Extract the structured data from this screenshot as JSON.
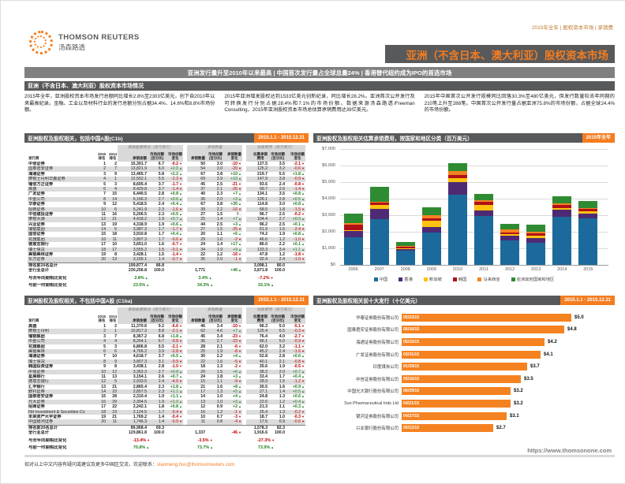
{
  "meta": "2015年全年 | 股权资本市场 | 承销费",
  "brand": {
    "name": "THOMSON REUTERS",
    "cn": "汤森路透"
  },
  "title": "亚洲（不含日本、澳大利亚）股权资本市场",
  "subtitle": "亚洲发行量升至2010年以来最高  |  中国首次发行量占全球总量24%  |  香港替代纽约成为IPO的首选市场",
  "overview": {
    "heading": "亚洲（不含日本、澳大利亚）股权资本市场情况",
    "paragraphs": [
      "2015年全年，亚洲股权资本市场发行总额同比增长2.8%至2303亿美元，创下自2010年以来最高纪录。金融、工业以及材料行业的发行总额分别占据34.4%、14.6%和8.8%市场份额。",
      "2015年亚洲增发股权达到1533亿美元创新纪录，同比增长28.2%。亚洲首次公开发行及可转换发行分别占据28.4%和7.1%的市场份额。数据来源汤森路透/Freeman Consulting，2015年亚洲股权资本市场总估算承销费用达39亿美元。",
      "2015年中国首次公开发行规模同比回落30.3%至480亿美元，但发行数量较去年同期的210笔上升至288笔。中国首次公开发行量占据亚洲75.8%的市场份额，占据全球24.4%的市场份额。"
    ]
  },
  "league_tables": [
    {
      "title": "亚洲股权及股权相关，包括中国A股(C1b)",
      "badge": "2015.1.1 - 2015.12.31",
      "groups": [
        "承销金额情况（百万美元）",
        "承销数量",
        "估算费用（百万美元）"
      ],
      "columns": [
        "发行商",
        "2015\n排名",
        "2014\n排名",
        "承销金额",
        "市场份额\n(百分比)",
        "市场份额\n变化",
        "承销数量",
        "市场份额\n(百分比)",
        "承销数量\n变化",
        "估算承销\n费用",
        "市场份额\n(百分比)",
        "市场份额\n变化"
      ],
      "rows": [
        [
          "中信证券",
          "1",
          "2",
          "15,301.7",
          "6.7",
          "-0.2",
          "50",
          "3.0",
          "-10",
          "137.5",
          "3.5",
          "-2.1"
        ],
        [
          "国泰君安证券",
          "2",
          "7",
          "13,821.9",
          "6.0",
          "+2.0",
          "54",
          "3.0",
          "-20",
          "125.2",
          "3.2",
          "-0.6"
        ],
        [
          "海通证券",
          "3",
          "9",
          "13,465.7",
          "5.8",
          "+2.2",
          "67",
          "3.8",
          "+10",
          "219.7",
          "5.5",
          "+1.8"
        ],
        [
          "摩根士丹利华鑫证券",
          "4",
          "1",
          "12,552.1",
          "5.5",
          "-2.3",
          "69",
          "3.9",
          "+10",
          "147.9",
          "3.8",
          "-0.9"
        ],
        [
          "瑞信方正证券",
          "5",
          "3",
          "8,605.4",
          "3.7",
          "-1.7",
          "45",
          "2.5",
          "-21",
          "93.6",
          "2.4",
          "-0.8"
        ],
        [
          "高盛",
          "6",
          "4",
          "8,429.8",
          "3.7",
          "-1.4",
          "37",
          "2.1",
          "-25",
          "99.7",
          "2.6",
          "-1.4"
        ],
        [
          "广发证券",
          "7",
          "15",
          "6,440.5",
          "2.8",
          "+0.8",
          "40",
          "2.3",
          "+7",
          "134.1",
          "3.5",
          "+0.8"
        ],
        [
          "中金公司",
          "8",
          "14",
          "6,166.3",
          "2.7",
          "+0.6",
          "36",
          "2.0",
          "+3",
          "109.1",
          "2.8",
          "+0.5"
        ],
        [
          "华泰证券",
          "9",
          "12",
          "5,418.5",
          "2.4",
          "+0.4",
          "67",
          "3.8",
          "+35",
          "114.8",
          "3.0",
          "+0.8"
        ],
        [
          "招商证券",
          "10",
          "6",
          "5,241.9",
          "2.3",
          "-1.6",
          "39",
          "2.2",
          "-16",
          "68.5",
          "1.8",
          "-1.5"
        ],
        [
          "中信建投证券",
          "11",
          "16",
          "5,206.5",
          "2.3",
          "+0.5",
          "27",
          "1.5",
          "0",
          "96.7",
          "2.5",
          "-0.2"
        ],
        [
          "摩根大通",
          "12",
          "21",
          "4,418.2",
          "1.9",
          "+0.7",
          "25",
          "1.4",
          "+7",
          "104.4",
          "2.7",
          "+0.9"
        ],
        [
          "兴业证券",
          "13",
          "19",
          "4,318.9",
          "1.9",
          "+0.6",
          "44",
          "2.5",
          "+3",
          "96.2",
          "2.5",
          "+0.1"
        ],
        [
          "瑞银集团",
          "14",
          "5",
          "3,987.3",
          "1.7",
          "-1.7",
          "27",
          "1.5",
          "-25",
          "61.9",
          "1.6",
          "-2.4"
        ],
        [
          "国信证券",
          "15",
          "18",
          "3,910.8",
          "1.7",
          "+0.4",
          "20",
          "1.1",
          "+6",
          "74.2",
          "1.9",
          "+0.8"
        ],
        [
          "花旗集团",
          "16",
          "11",
          "3,807.3",
          "1.7",
          "-0.6",
          "29",
          "1.6",
          "-2",
          "46.6",
          "1.2",
          "-1.0"
        ],
        [
          "德意志银行",
          "17",
          "10",
          "3,651.0",
          "1.6",
          "-0.7",
          "24",
          "1.4",
          "+17",
          "86.0",
          "2.2",
          "+0.1"
        ],
        [
          "瑞士信贷",
          "18",
          "17",
          "3,555.2",
          "1.5",
          "-0.1",
          "34",
          "1.9",
          "+9",
          "133.3",
          "3.4",
          "+1.1"
        ],
        [
          "美银美林证券",
          "19",
          "8",
          "3,428.1",
          "1.5",
          "-1.4",
          "22",
          "1.2",
          "-16",
          "47.8",
          "1.2",
          "-1.8"
        ],
        [
          "东方证券",
          "20",
          "13",
          "3,166.1",
          "1.4",
          "-0.7",
          "35",
          "2.0",
          "-1",
          "92.4",
          "2.4",
          "-1.0"
        ]
      ],
      "totals": [
        {
          "label": "排名前20名总计",
          "amt": "199,877.4",
          "amt_shr": "86.8",
          "cnt": "",
          "cnt_chg": "",
          "fee": "3,098.1",
          "fee_shr": "80.0"
        },
        {
          "label": "全行业总计",
          "amt": "230,256.8",
          "amt_shr": "100.0",
          "cnt": "1,771",
          "cnt_chg": "+46",
          "fee": "3,871.8",
          "fee_shr": "100.0"
        }
      ],
      "changes": [
        {
          "label": "与去年同期相比变化",
          "amt": "2.8%",
          "cnt": "3.4%",
          "fee": "-7.2%"
        },
        {
          "label": "与前一时期相比变化",
          "amt": "23.5%",
          "cnt": "34.3%",
          "fee": "33.1%"
        }
      ]
    },
    {
      "title": "亚洲股权及股权相关，不包括中国A股 (C1ba)",
      "badge": "2015.1.1 - 2015.12.31",
      "groups": [
        "承销金额情况（百万美元）",
        "承销数量",
        "估算费用（百万美元）"
      ],
      "columns": [
        "发行商",
        "2015\n排名",
        "2014\n排名",
        "承销金额",
        "市场份额\n(百分比)",
        "市场份额\n变化",
        "承销数量",
        "市场份额\n(百分比)",
        "承销数量\n变化",
        "估算承销\n费用",
        "市场份额\n(百分比)",
        "市场份额\n变化"
      ],
      "rows": [
        [
          "高盛",
          "1",
          "2",
          "11,370.6",
          "9.2",
          "-6.6",
          "46",
          "3.4",
          "-10",
          "96.3",
          "5.0",
          "-5.1"
        ],
        [
          "摩根士丹利",
          "2",
          "1",
          "10,817.3",
          "8.8",
          "-2.1",
          "62",
          "4.6",
          "+7",
          "125.4",
          "6.5",
          "-0.3"
        ],
        [
          "瑞银集团",
          "3",
          "7",
          "8,367.2",
          "6.8",
          "+1.8",
          "45",
          "3.4",
          "-23",
          "76.4",
          "4.0",
          "-2.7"
        ],
        [
          "中金公司",
          "4",
          "4",
          "8,264.1",
          "6.7",
          "-0.8",
          "36",
          "2.7",
          "-23",
          "96.1",
          "5.0",
          "-0.9"
        ],
        [
          "花旗集团",
          "5",
          "3",
          "6,806.8",
          "5.5",
          "-2.1",
          "28",
          "2.1",
          "-6",
          "62.0",
          "3.2",
          "-1.1"
        ],
        [
          "美银美林",
          "6",
          "6",
          "4,766.2",
          "3.9",
          "-2.8",
          "25",
          "1.9",
          "-8",
          "45.2",
          "2.4",
          "-1.6"
        ],
        [
          "海通证券",
          "7",
          "10",
          "4,618.7",
          "3.7",
          "+0.5",
          "30",
          "2.2",
          "+4",
          "52.8",
          "2.8",
          "+0.6"
        ],
        [
          "瑞士信贷",
          "8",
          "9",
          "3,807.3",
          "3.1",
          "-0.9",
          "22",
          "1.6",
          "-5",
          "40.1",
          "2.1",
          "-0.8"
        ],
        [
          "韩国投资证券",
          "9",
          "8",
          "3,438.1",
          "2.8",
          "-1.0",
          "18",
          "1.3",
          "-2",
          "35.6",
          "1.9",
          "-0.5"
        ],
        [
          "中信证券",
          "10",
          "12",
          "3,362.3",
          "2.7",
          "+0.8",
          "20",
          "1.5",
          "+6",
          "38.2",
          "2.0",
          "+0.7"
        ],
        [
          "星展银行",
          "11",
          "13",
          "3,154.1",
          "2.6",
          "+0.7",
          "24",
          "1.8",
          "+3",
          "33.4",
          "1.7",
          "+0.4"
        ],
        [
          "德意志银行",
          "12",
          "5",
          "2,933.5",
          "2.4",
          "-4.0",
          "15",
          "1.1",
          "-9",
          "28.9",
          "1.5",
          "-1.2"
        ],
        [
          "汇丰银行",
          "13",
          "21",
          "2,865.4",
          "2.3",
          "+1.8",
          "21",
          "1.6",
          "+8",
          "30.5",
          "1.6",
          "+0.9"
        ],
        [
          "野村证券",
          "14",
          "23",
          "2,857.5",
          "2.3",
          "+1.1",
          "17",
          "1.3",
          "+5",
          "27.1",
          "1.4",
          "+0.5"
        ],
        [
          "国泰君安证券",
          "15",
          "28",
          "2,310.4",
          "1.9",
          "+1.1",
          "14",
          "1.0",
          "+4",
          "24.8",
          "1.3",
          "+0.6"
        ],
        [
          "元大证券",
          "16",
          "29",
          "2,304.5",
          "1.9",
          "+1.0",
          "13",
          "1.0",
          "+3",
          "22.6",
          "1.2",
          "+0.4"
        ],
        [
          "招商证券",
          "17",
          "22",
          "2,242.1",
          "1.8",
          "+0.8",
          "12",
          "0.9",
          "+2",
          "21.3",
          "1.1",
          "+0.3"
        ],
        [
          "NH Investment & Securities Co",
          "18",
          "19",
          "2,124.5",
          "1.7",
          "-0.4",
          "16",
          "1.2",
          "-1",
          "25.4",
          "1.3",
          "-0.2"
        ],
        [
          "未来资产大宇证券",
          "19",
          "21",
          "1,769.2",
          "1.4",
          "-0.4",
          "10",
          "0.7",
          "-3",
          "18.7",
          "1.0",
          "-0.3"
        ],
        [
          "中国银河证券",
          "20",
          "11",
          "1,746.3",
          "1.4",
          "-0.9",
          "11",
          "0.8",
          "-4",
          "17.5",
          "0.9",
          "-0.6"
        ]
      ],
      "totals": [
        {
          "label": "排名前20名总计",
          "amt": "89,968.4",
          "amt_shr": "69.3",
          "cnt": "",
          "cnt_chg": "",
          "fee": "1,578.3",
          "fee_shr": "82.3"
        },
        {
          "label": "全行业总计",
          "amt": "129,861.8",
          "amt_shr": "100.0",
          "cnt": "1,337",
          "cnt_chg": "-46",
          "fee": "1,916.6",
          "fee_shr": "100.0"
        }
      ],
      "changes": [
        {
          "label": "与去年同期相比变化",
          "amt": "-13.4%",
          "cnt": "-3.5%",
          "fee": "-27.3%"
        },
        {
          "label": "与前一时期相比变化",
          "amt": "70.8%",
          "cnt": "73.7%",
          "fee": "73.9%"
        }
      ]
    }
  ],
  "fee_chart": {
    "title": "亚洲股权及股权相关估算承销费用，按国家和地区分类（百万美元）",
    "badge": "2015年全年",
    "chart_data": {
      "type": "bar",
      "stacked": true,
      "categories": [
        "2006",
        "2007",
        "2008",
        "2009",
        "2010",
        "2011",
        "2012",
        "2013",
        "2014",
        "2015"
      ],
      "series": [
        {
          "name": "中国",
          "color": "#1b6a9b",
          "values": [
            1650,
            2750,
            850,
            1950,
            4250,
            2950,
            1500,
            1350,
            2900,
            2800
          ]
        },
        {
          "name": "香港",
          "color": "#4f2a74",
          "values": [
            400,
            650,
            100,
            350,
            750,
            350,
            250,
            250,
            450,
            300
          ]
        },
        {
          "name": "新加坡",
          "color": "#ffc20e",
          "values": [
            70,
            200,
            60,
            350,
            250,
            300,
            100,
            150,
            100,
            150
          ]
        },
        {
          "name": "韩国",
          "color": "#b01116",
          "values": [
            330,
            150,
            80,
            150,
            200,
            200,
            100,
            150,
            150,
            150
          ]
        },
        {
          "name": "马来西亚",
          "color": "#f58220",
          "values": [
            70,
            80,
            60,
            200,
            200,
            100,
            200,
            100,
            100,
            50
          ]
        },
        {
          "name": "亚洲其他国家和地区",
          "color": "#2e8b32",
          "values": [
            560,
            870,
            250,
            500,
            500,
            400,
            350,
            450,
            450,
            400
          ]
        }
      ],
      "ylim": [
        0,
        7000
      ],
      "yticks": [
        "$0",
        "$1,000",
        "$2,000",
        "$3,000",
        "$4,000",
        "$5,000",
        "$6,000",
        "$7,000"
      ],
      "legend_position": "bottom"
    }
  },
  "deal_chart": {
    "title": "亚洲股权及股权相关前十大发行（十亿美元）",
    "badge": "2015.1.1 - 2015.12.31",
    "chart_data": {
      "type": "bar",
      "orientation": "horizontal",
      "xlim": [
        0,
        5.5
      ],
      "items": [
        {
          "company": "华泰证券股份有限公司",
          "date": "05/22/15",
          "value": 5.0,
          "label": "$5.0"
        },
        {
          "company": "国泰君安证券股份有限公司",
          "date": "06/16/15",
          "value": 4.8,
          "label": "$4.8"
        },
        {
          "company": "海通证券股份有限公司",
          "date": "05/15/15",
          "value": 4.2,
          "label": "$4.2"
        },
        {
          "company": "广发证券股份有限公司",
          "date": "03/31/15",
          "value": 4.1,
          "label": "$4.1"
        },
        {
          "company": "印度煤炭公司",
          "date": "01/29/15",
          "value": 3.7,
          "label": "$3.7"
        },
        {
          "company": "中信证券股份有限公司",
          "date": "06/16/15",
          "value": 3.5,
          "label": "$3.5"
        },
        {
          "company": "中国光大银行股份有限公司",
          "date": "06/29/15",
          "value": 3.2,
          "label": "$3.2"
        },
        {
          "company": "Sun Pharmaceutical Inds Ltd",
          "date": "04/21/15",
          "value": 3.2,
          "label": "$3.2"
        },
        {
          "company": "银河证券股份有限公司",
          "date": "04/27/15",
          "value": 3.1,
          "label": "$3.1"
        },
        {
          "company": "兴业银行股份有限公司",
          "date": "05/12/15",
          "value": 2.7,
          "label": "$2.7"
        }
      ]
    }
  },
  "footer": {
    "contact_prefix": "如对以上中文内容有疑问或建议及更多中国区交流，欢迎联系：",
    "contact_email": "xiaomeng.hsu@thomsonreuters.com",
    "url": "https://www.thomsonone.com"
  }
}
